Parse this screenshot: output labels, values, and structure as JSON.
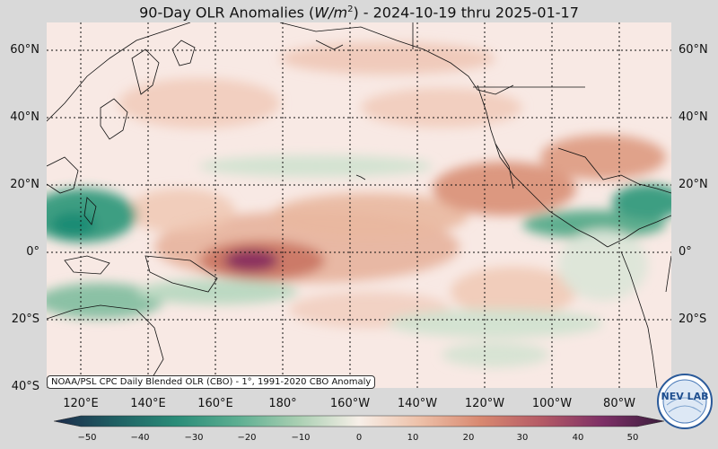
{
  "title": {
    "prefix": "90-Day OLR Anomalies (",
    "unit": "W/m",
    "exponent": "2",
    "suffix": ") - 2024-10-19 thru 2025-01-17"
  },
  "credit": "NOAA/PSL CPC Daily Blended OLR (CBO) - 1°, 1991-2020 CBO Anomaly",
  "logo_text": "NEV LAB",
  "axes": {
    "lat_labels": [
      "60°N",
      "40°N",
      "20°N",
      "0°",
      "20°S",
      "40°S"
    ],
    "lon_labels": [
      "120°E",
      "140°E",
      "160°E",
      "180°",
      "160°W",
      "140°W",
      "120°W",
      "100°W",
      "80°W"
    ]
  },
  "colorbar": {
    "ticks": [
      "−50",
      "−40",
      "−30",
      "−20",
      "−10",
      "0",
      "10",
      "20",
      "30",
      "40",
      "50"
    ],
    "colors": [
      "#1b2a4a",
      "#1f5f63",
      "#2a8c78",
      "#5cae91",
      "#a9cfb2",
      "#f7efe8",
      "#edc0a8",
      "#d88870",
      "#b45a66",
      "#7d2f66",
      "#3a1d3c"
    ]
  },
  "colors": {
    "ocean_base": "#f8e9e4",
    "positive_strong": "#8a2f5e",
    "positive_mid": "#cc7a68",
    "negative_mid": "#5fae8f",
    "negative_strong": "#1e8c74",
    "coast": "#111111"
  }
}
